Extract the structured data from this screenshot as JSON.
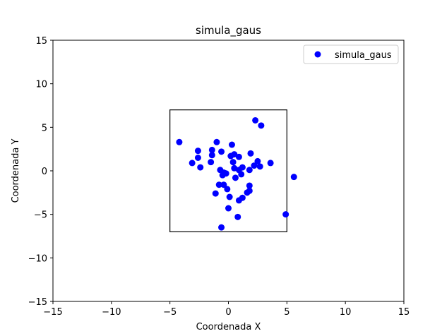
{
  "chart_data": {
    "type": "scatter",
    "title": "simula_gaus",
    "xlabel": "Coordenada X",
    "ylabel": "Coordenada Y",
    "xlim": [
      -15,
      15
    ],
    "ylim": [
      -15,
      15
    ],
    "xticks": [
      -15,
      -10,
      -5,
      0,
      5,
      10,
      15
    ],
    "yticks": [
      -15,
      -10,
      -5,
      0,
      5,
      10,
      15
    ],
    "tick_labels_x": [
      "−15",
      "−10",
      "−5",
      "0",
      "5",
      "10",
      "15"
    ],
    "tick_labels_y": [
      "−15",
      "−10",
      "−5",
      "0",
      "5",
      "10",
      "15"
    ],
    "grid": false,
    "legend_position": "top-right",
    "box": {
      "x0": -5,
      "y0": -7,
      "x1": 5,
      "y1": 7
    },
    "series": [
      {
        "name": "simula_gaus",
        "color": "#0000ff",
        "marker": "circle",
        "points": [
          [
            2.3,
            5.8
          ],
          [
            2.8,
            5.2
          ],
          [
            -4.2,
            3.3
          ],
          [
            -1.0,
            3.3
          ],
          [
            0.3,
            3.0
          ],
          [
            -2.6,
            2.3
          ],
          [
            -1.4,
            2.4
          ],
          [
            -0.6,
            2.2
          ],
          [
            -1.4,
            1.8
          ],
          [
            0.5,
            1.9
          ],
          [
            0.2,
            1.7
          ],
          [
            0.9,
            1.6
          ],
          [
            1.9,
            2.0
          ],
          [
            -2.6,
            1.5
          ],
          [
            -1.5,
            1.0
          ],
          [
            0.4,
            1.0
          ],
          [
            2.5,
            1.1
          ],
          [
            -3.1,
            0.9
          ],
          [
            3.6,
            0.9
          ],
          [
            2.2,
            0.6
          ],
          [
            2.7,
            0.5
          ],
          [
            -2.4,
            0.4
          ],
          [
            0.5,
            0.3
          ],
          [
            1.2,
            0.4
          ],
          [
            0.9,
            0.1
          ],
          [
            1.8,
            0.1
          ],
          [
            -0.7,
            0.1
          ],
          [
            -0.4,
            -0.2
          ],
          [
            -0.2,
            -0.3
          ],
          [
            1.1,
            -0.4
          ],
          [
            -0.5,
            -0.5
          ],
          [
            0.6,
            -0.8
          ],
          [
            5.6,
            -0.7
          ],
          [
            -0.8,
            -1.6
          ],
          [
            -0.4,
            -1.6
          ],
          [
            1.8,
            -1.7
          ],
          [
            -0.1,
            -2.1
          ],
          [
            1.8,
            -2.3
          ],
          [
            1.6,
            -2.5
          ],
          [
            -1.1,
            -2.6
          ],
          [
            0.1,
            -3.0
          ],
          [
            1.2,
            -3.1
          ],
          [
            0.9,
            -3.4
          ],
          [
            0.0,
            -4.3
          ],
          [
            4.9,
            -5.0
          ],
          [
            0.8,
            -5.3
          ],
          [
            -0.6,
            -6.5
          ]
        ]
      }
    ]
  }
}
